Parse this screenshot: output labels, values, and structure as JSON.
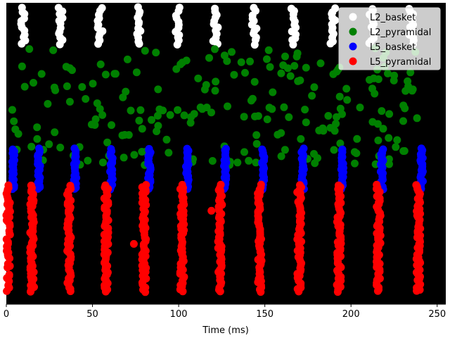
{
  "chart_data": {
    "type": "scatter",
    "title": "",
    "xlabel": "Time (ms)",
    "ylabel": "",
    "xlim": [
      0,
      255
    ],
    "xticks": [
      0,
      50,
      100,
      150,
      200,
      250
    ],
    "background": "#000000",
    "legend_position": "top-right",
    "marker": "circle",
    "series": [
      {
        "name": "L2_basket",
        "color": "#ffffff",
        "bursts": [
          9.5,
          31.5,
          54.5,
          76.5,
          99,
          121.5,
          144,
          166.5,
          189.5,
          212,
          235
        ],
        "jitter": 1.5,
        "points_per_burst": 12,
        "band": [
          0.86,
          0.99
        ]
      },
      {
        "name": "L2_pyramidal",
        "color": "#008000",
        "x_range": [
          3,
          240
        ],
        "n_points": 220,
        "band": [
          0.46,
          0.85
        ]
      },
      {
        "name": "L5_basket",
        "color": "#0000ff",
        "bursts": [
          4,
          19,
          40,
          61,
          83,
          105,
          127,
          149,
          172,
          195,
          218,
          241
        ],
        "jitter": 0.8,
        "points_per_burst": 22,
        "band": [
          0.38,
          0.52
        ]
      },
      {
        "name": "L5_pyramidal",
        "color": "#ff0000",
        "bursts": [
          1,
          15,
          36.5,
          58,
          80,
          102,
          124,
          147,
          170,
          193,
          216,
          239
        ],
        "jitter": 1.2,
        "points_per_burst": 50,
        "band": [
          0.04,
          0.4
        ],
        "outliers": [
          [
            119,
            0.31
          ],
          [
            74,
            0.2
          ]
        ]
      }
    ]
  }
}
